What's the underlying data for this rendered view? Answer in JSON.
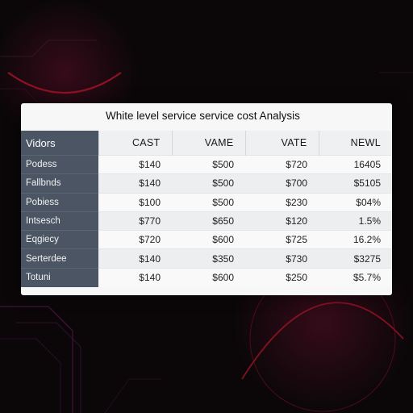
{
  "title": "White level service service cost Analysis",
  "table": {
    "columns": [
      "Vidors",
      "CAST",
      "VAME",
      "VATE",
      "NEWL"
    ],
    "rows": [
      {
        "label": "Podess",
        "values": [
          "$140",
          "$500",
          "$720",
          "16405"
        ]
      },
      {
        "label": "Fallbnds",
        "values": [
          "$140",
          "$500",
          "$700",
          "$5105"
        ]
      },
      {
        "label": "Pobiess",
        "values": [
          "$100",
          "$500",
          "$230",
          "$04%"
        ]
      },
      {
        "label": "Intsesch",
        "values": [
          "$770",
          "$650",
          "$120",
          "1.5%"
        ]
      },
      {
        "label": "Eqgiecy",
        "values": [
          "$720",
          "$600",
          "$725",
          "16.2%"
        ]
      },
      {
        "label": "Serterdee",
        "values": [
          "$140",
          "$350",
          "$730",
          "$3275"
        ]
      },
      {
        "label": "Totuni",
        "values": [
          "$140",
          "$600",
          "$250",
          "$5.7%"
        ]
      }
    ]
  },
  "colors": {
    "background": "#0b0709",
    "card": "#f7f7f8",
    "row_header": "#4b5563",
    "accent_glow": "#b0122a"
  }
}
